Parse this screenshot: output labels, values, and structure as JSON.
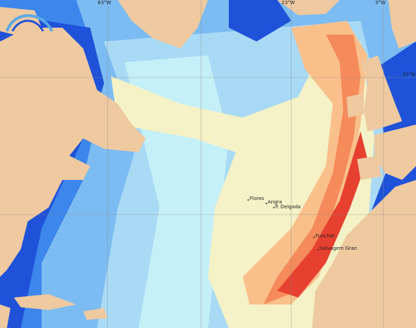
{
  "map": {
    "graticule_labels": [
      "63°W",
      "23°W",
      "3°W",
      "57°N"
    ],
    "places": [
      "Flores",
      "Angra",
      "P. Delgada",
      "Funchal",
      "Salvagem Gran"
    ]
  }
}
